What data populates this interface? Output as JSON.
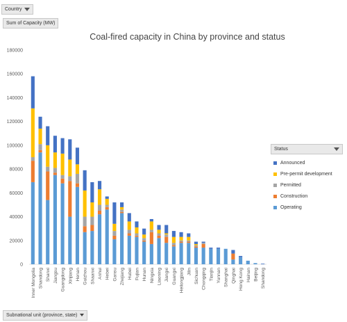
{
  "filters": {
    "country": "Country",
    "sum_field": "Sum of Capacity (MW)",
    "axis_field": "Subnational unit (province, state)"
  },
  "legend": {
    "title": "Status",
    "items": [
      {
        "label": "Announced",
        "color": "#4472c4"
      },
      {
        "label": "Pre-permit development",
        "color": "#ffc000"
      },
      {
        "label": "Permitted",
        "color": "#a5a5a5"
      },
      {
        "label": "Construction",
        "color": "#ed7d31"
      },
      {
        "label": "Operating",
        "color": "#5b9bd5"
      }
    ]
  },
  "chart_data": {
    "type": "bar",
    "stacked": true,
    "title": "Coal-fired capacity in China by province and status",
    "xlabel": "",
    "ylabel": "",
    "ylim": [
      0,
      180000
    ],
    "yticks": [
      0,
      20000,
      40000,
      60000,
      80000,
      100000,
      120000,
      140000,
      160000,
      180000
    ],
    "grid": false,
    "legend_position": "right",
    "categories": [
      "Inner Mongolia",
      "Shandong",
      "Shanxi",
      "Jiangsu",
      "Guangdong",
      "Xinjiang",
      "Henan",
      "Guizhou",
      "Shaanxi",
      "Anhui",
      "Hebei",
      "Gansu",
      "Zhejiang",
      "Hubei",
      "Fujian",
      "Hunan",
      "Ningxia",
      "Liaoning",
      "Jiangxi",
      "Guangxi",
      "Heilongjiang",
      "Jilin",
      "Sichuan",
      "Chongqing",
      "Tianjin",
      "Yunnan",
      "Shanghai",
      "Qinghai",
      "Hong Kong",
      "Hainan",
      "Beijing",
      "Shandong"
    ],
    "series": [
      {
        "name": "Operating",
        "color": "#5b9bd5",
        "values": [
          69000,
          94000,
          54000,
          75000,
          68000,
          40000,
          65000,
          27000,
          28000,
          42000,
          46000,
          21000,
          43000,
          24000,
          23000,
          19000,
          17000,
          22000,
          18000,
          15000,
          18000,
          18000,
          14000,
          14000,
          13000,
          13000,
          13000,
          4000,
          6000,
          3000,
          1000,
          0
        ]
      },
      {
        "name": "Construction",
        "color": "#ed7d31",
        "values": [
          18000,
          2000,
          24000,
          2000,
          4000,
          30000,
          3000,
          5000,
          5000,
          3000,
          2000,
          3000,
          1000,
          2000,
          1000,
          1000,
          10000,
          2000,
          5000,
          1000,
          1000,
          1000,
          1000,
          3000,
          0,
          0,
          0,
          5000,
          0,
          0,
          0,
          0
        ]
      },
      {
        "name": "Permitted",
        "color": "#a5a5a5",
        "values": [
          3000,
          5000,
          4000,
          4000,
          3000,
          4000,
          8000,
          8000,
          7000,
          5000,
          2000,
          4000,
          2000,
          3000,
          2000,
          2000,
          2000,
          2000,
          2000,
          2000,
          1000,
          1000,
          1000,
          1000,
          0,
          0,
          0,
          0,
          0,
          0,
          0,
          0
        ]
      },
      {
        "name": "Pre-permit development",
        "color": "#ffc000",
        "values": [
          41000,
          13000,
          18000,
          13000,
          18000,
          14000,
          8000,
          22000,
          12000,
          13000,
          5000,
          6000,
          2000,
          7000,
          5000,
          3000,
          7000,
          3000,
          1000,
          5000,
          3000,
          3000,
          1000,
          0,
          0,
          0,
          0,
          0,
          0,
          0,
          0,
          0
        ]
      },
      {
        "name": "Announced",
        "color": "#4472c4",
        "values": [
          27000,
          10000,
          16000,
          14000,
          13000,
          17000,
          14000,
          17000,
          17000,
          7000,
          2000,
          18000,
          4000,
          7000,
          5000,
          5000,
          2000,
          4000,
          7000,
          5000,
          4000,
          3000,
          2000,
          1000,
          1000,
          1000,
          0,
          3000,
          1000,
          0,
          0,
          500
        ]
      }
    ]
  }
}
